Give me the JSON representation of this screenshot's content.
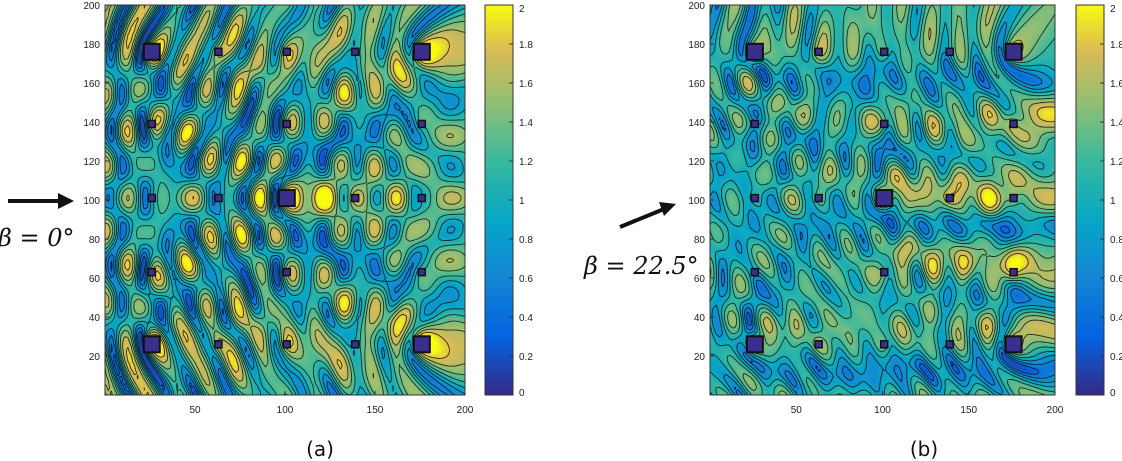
{
  "chart_data": [
    {
      "type": "heatmap",
      "caption": "(a)",
      "annotation": "β = 0°",
      "x_ticks": [
        50,
        100,
        150,
        200
      ],
      "y_ticks": [
        20,
        40,
        60,
        80,
        100,
        120,
        140,
        160,
        180,
        200
      ],
      "xlim": [
        0,
        200
      ],
      "ylim": [
        0,
        200
      ],
      "colorbar": {
        "min": 0,
        "max": 2,
        "ticks": [
          "0",
          "0.2",
          "0.4",
          "0.6",
          "0.8",
          "1",
          "1.2",
          "1.4",
          "1.6",
          "1.8",
          "2"
        ]
      },
      "incident_arrow_angle_deg": 0,
      "large_scatterers": [
        [
          26,
          26
        ],
        [
          26,
          176
        ],
        [
          101,
          101
        ],
        [
          176,
          26
        ],
        [
          176,
          176
        ]
      ],
      "small_scatterers": [
        [
          26,
          63
        ],
        [
          26,
          101
        ],
        [
          26,
          139
        ],
        [
          63,
          26
        ],
        [
          63,
          101
        ],
        [
          63,
          176
        ],
        [
          101,
          26
        ],
        [
          101,
          63
        ],
        [
          101,
          139
        ],
        [
          101,
          176
        ],
        [
          139,
          26
        ],
        [
          139,
          101
        ],
        [
          139,
          176
        ],
        [
          176,
          63
        ],
        [
          176,
          101
        ],
        [
          176,
          139
        ]
      ]
    },
    {
      "type": "heatmap",
      "caption": "(b)",
      "annotation": "β = 22.5°",
      "x_ticks": [
        50,
        100,
        150,
        200
      ],
      "y_ticks": [
        20,
        40,
        60,
        80,
        100,
        120,
        140,
        160,
        180,
        200
      ],
      "xlim": [
        0,
        200
      ],
      "ylim": [
        0,
        200
      ],
      "colorbar": {
        "min": 0,
        "max": 2,
        "ticks": [
          "0",
          "0.2",
          "0.4",
          "0.6",
          "0.8",
          "1",
          "1.2",
          "1.4",
          "1.6",
          "1.8",
          "2"
        ]
      },
      "incident_arrow_angle_deg": 22.5,
      "large_scatterers": [
        [
          26,
          26
        ],
        [
          26,
          176
        ],
        [
          101,
          101
        ],
        [
          176,
          26
        ],
        [
          176,
          176
        ]
      ],
      "small_scatterers": [
        [
          26,
          63
        ],
        [
          26,
          101
        ],
        [
          26,
          139
        ],
        [
          63,
          26
        ],
        [
          63,
          101
        ],
        [
          63,
          176
        ],
        [
          101,
          26
        ],
        [
          101,
          63
        ],
        [
          101,
          139
        ],
        [
          101,
          176
        ],
        [
          139,
          26
        ],
        [
          139,
          101
        ],
        [
          139,
          176
        ],
        [
          176,
          63
        ],
        [
          176,
          101
        ],
        [
          176,
          139
        ]
      ]
    }
  ]
}
